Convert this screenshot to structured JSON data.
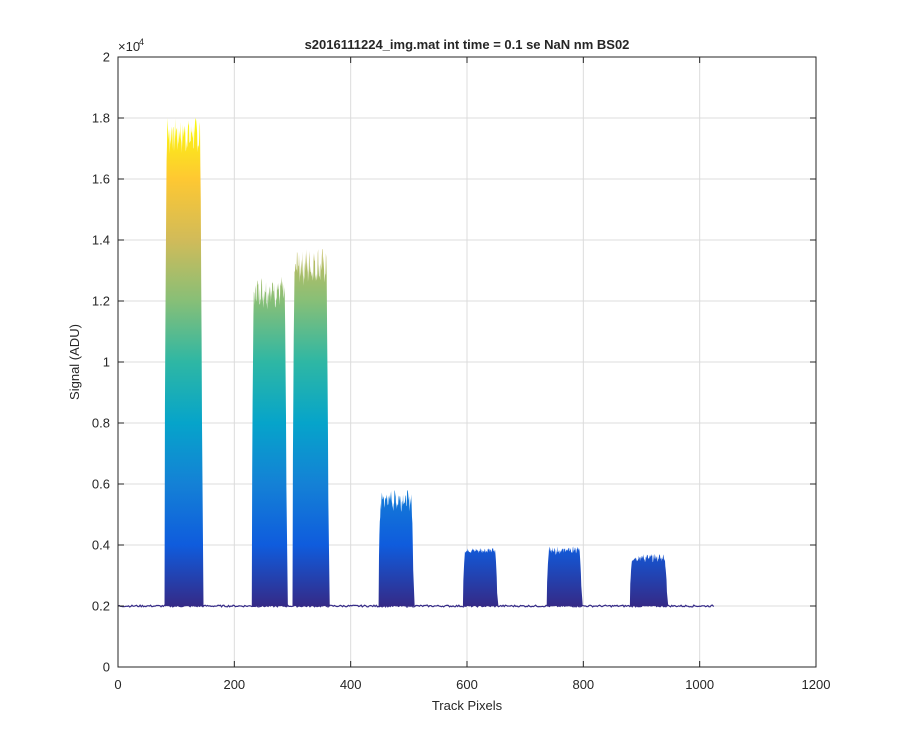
{
  "chart_data": {
    "type": "area",
    "title": "s2016111224_img.mat int time = 0.1 se  NaN nm BS02",
    "xlabel": "Track Pixels",
    "ylabel": "Signal (ADU)",
    "xlim": [
      0,
      1200
    ],
    "ylim": [
      0,
      20000
    ],
    "x_ticks": [
      "0",
      "200",
      "400",
      "600",
      "800",
      "1000",
      "1200"
    ],
    "y_ticks": [
      "0",
      "0.2",
      "0.4",
      "0.6",
      "0.8",
      "1",
      "1.2",
      "1.4",
      "1.6",
      "1.8",
      "2"
    ],
    "y_exponent_base": "×10",
    "y_exponent_power": "4",
    "grid": true,
    "colormap": "parula",
    "colormap_stops": [
      "#352a87",
      "#0f5cdd",
      "#1481d6",
      "#06a4ca",
      "#2eb7a4",
      "#87bf77",
      "#d1bb59",
      "#fec832",
      "#f9fb0e"
    ],
    "baseline": 2000,
    "trace_end_x": 1024,
    "peaks": [
      {
        "x_start": 80,
        "x_end": 145,
        "max_signal": 18000,
        "mean_top": 17300
      },
      {
        "x_start": 230,
        "x_end": 290,
        "max_signal": 12800,
        "mean_top": 12200
      },
      {
        "x_start": 300,
        "x_end": 362,
        "max_signal": 13700,
        "mean_top": 13000
      },
      {
        "x_start": 448,
        "x_end": 508,
        "max_signal": 5800,
        "mean_top": 5400
      },
      {
        "x_start": 593,
        "x_end": 652,
        "max_signal": 3900,
        "mean_top": 3800
      },
      {
        "x_start": 737,
        "x_end": 797,
        "max_signal": 3950,
        "mean_top": 3800
      },
      {
        "x_start": 880,
        "x_end": 944,
        "max_signal": 3700,
        "mean_top": 3550
      }
    ]
  }
}
